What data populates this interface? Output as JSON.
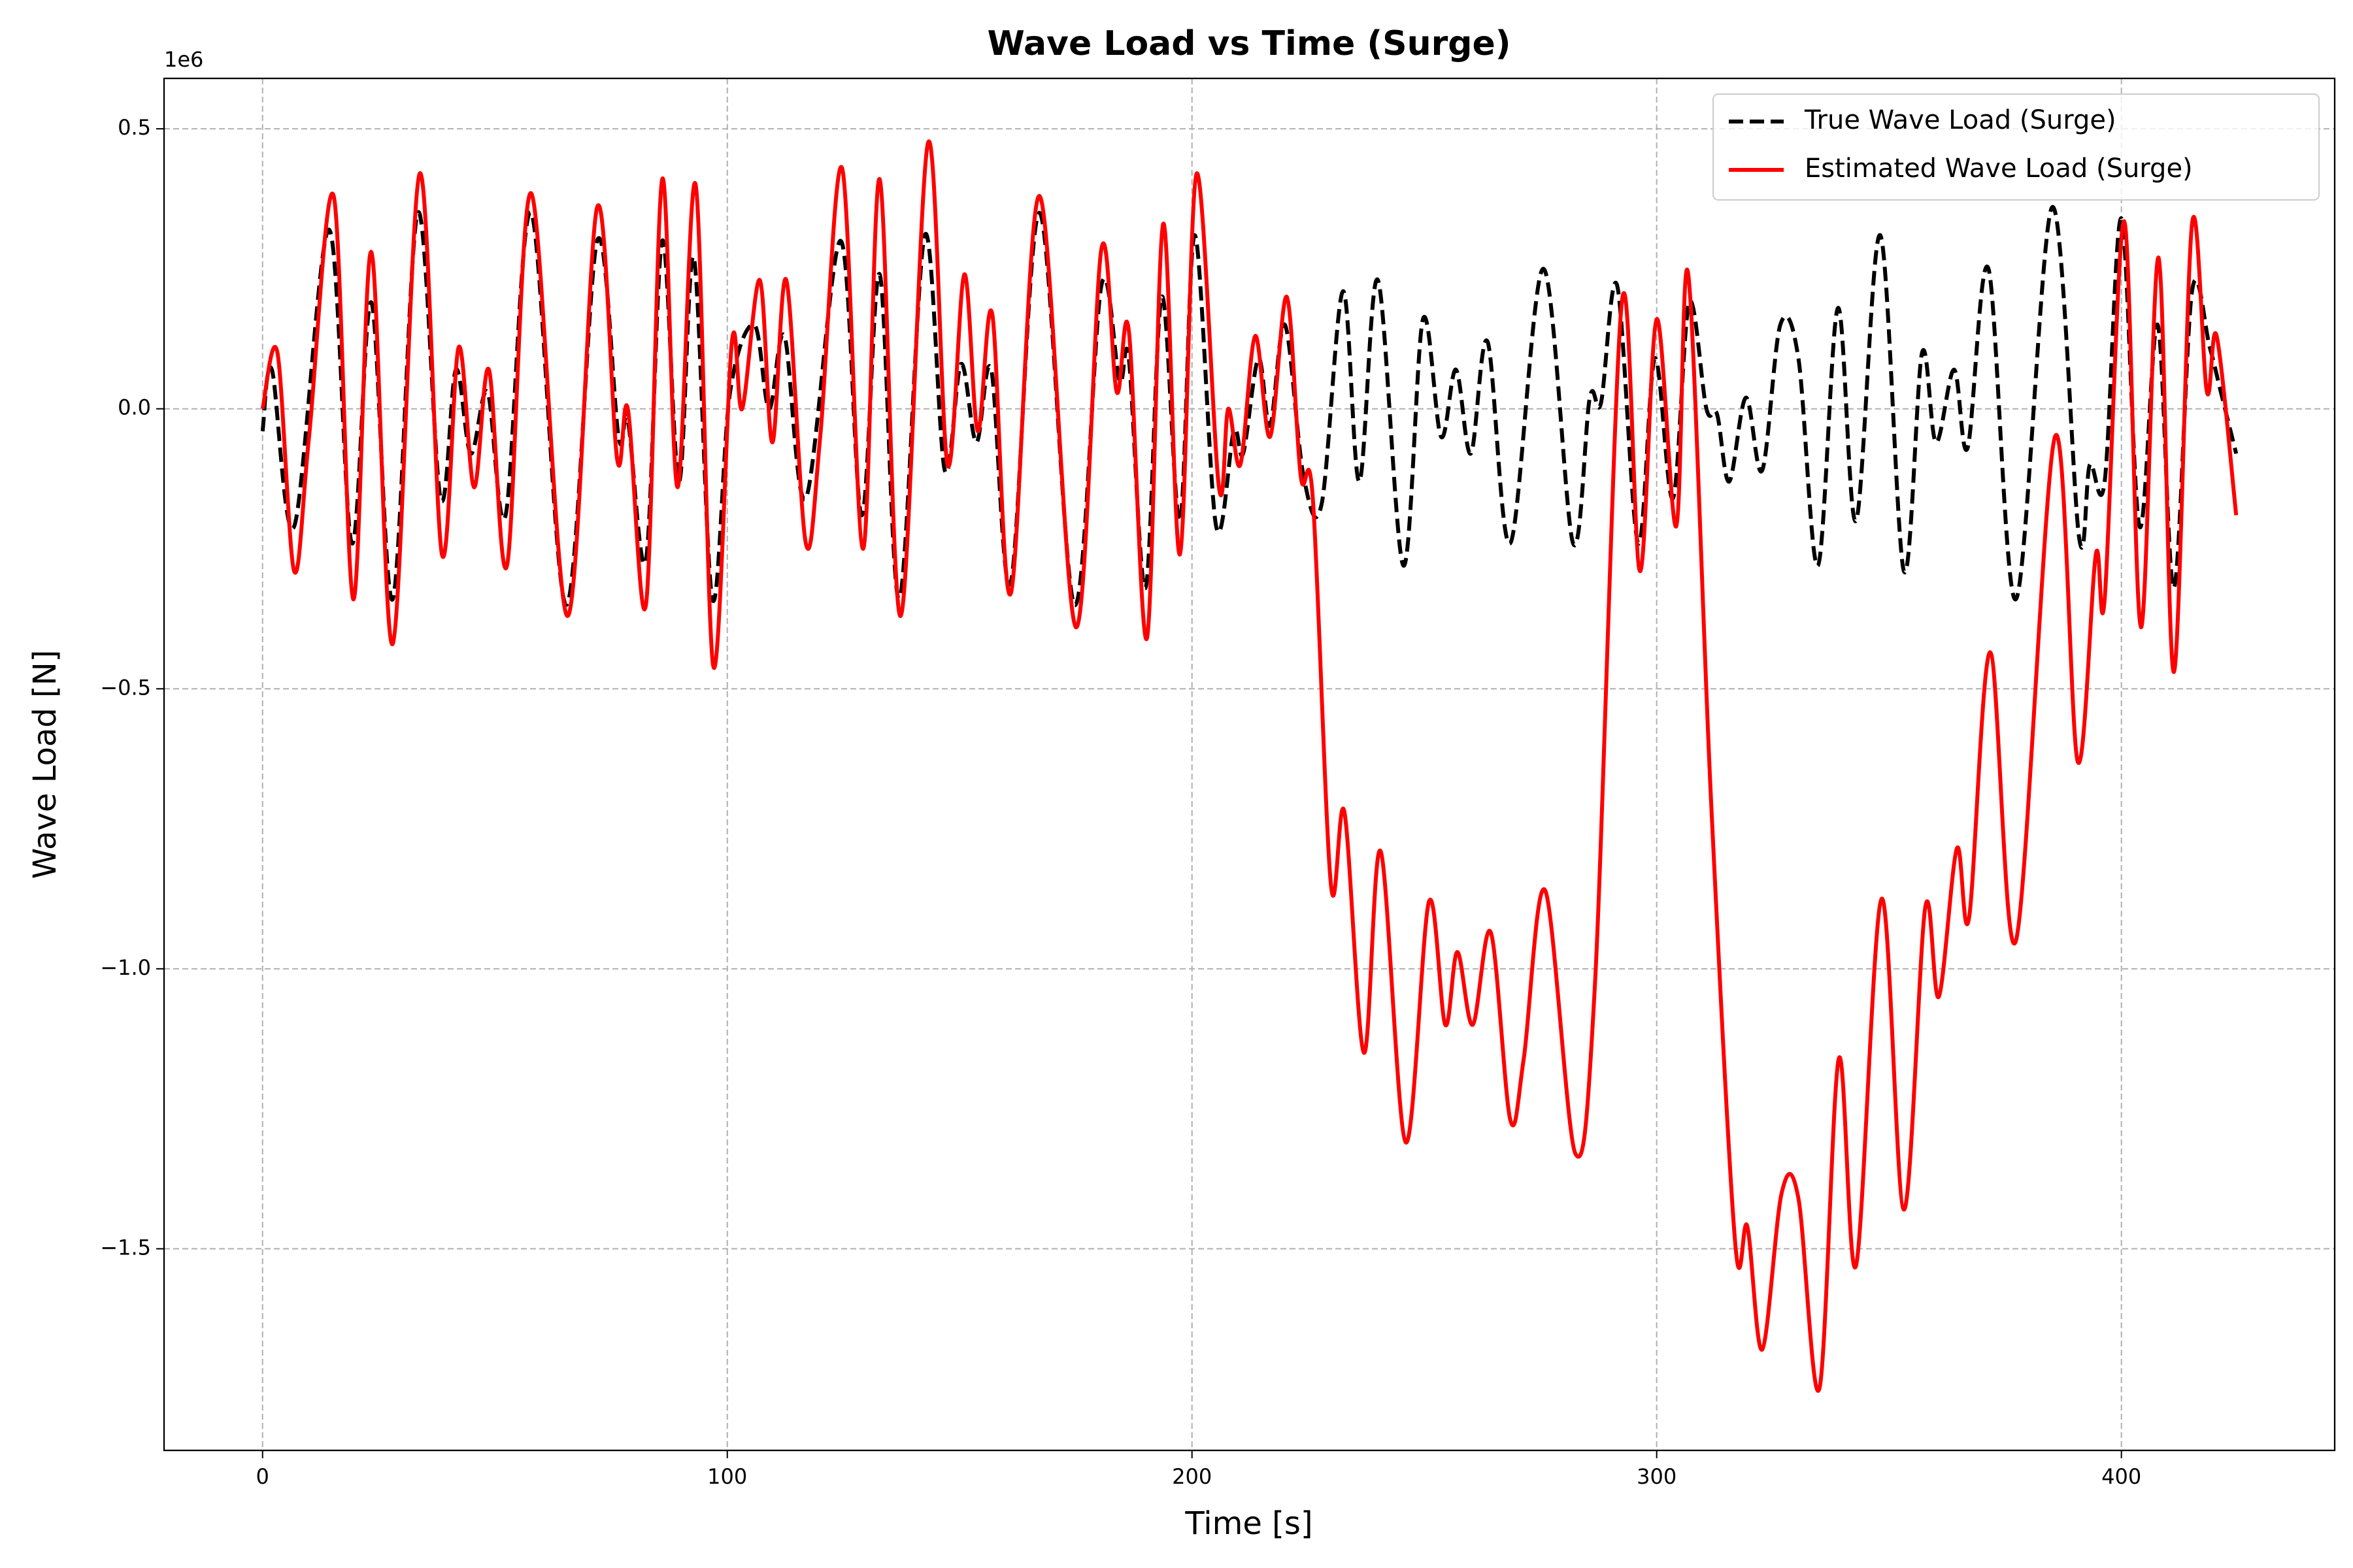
{
  "chart_data": {
    "type": "line",
    "title": "Wave Load vs Time (Surge)",
    "x_label": "Time [s]",
    "y_label": "Wave Load [N]",
    "y_offset_text": "1e6",
    "xlim": [
      -21.2,
      445.9
    ],
    "ylim": [
      -1.86,
      0.59
    ],
    "xticks": [
      0,
      100,
      200,
      300,
      400
    ],
    "yticks": [
      {
        "value": -1.5,
        "label": "−1.5"
      },
      {
        "value": -1.0,
        "label": "−1.0"
      },
      {
        "value": -0.5,
        "label": "−0.5"
      },
      {
        "value": 0,
        "label": "0.0"
      },
      0.5
    ],
    "grid": true,
    "legend_loc": "upper right",
    "series": [
      {
        "name": "True Wave Load (Surge)",
        "color": "#000000",
        "linestyle": "dashed",
        "x": [
          0,
          2,
          6.8,
          14.3,
          19.2,
          23.4,
          28,
          33.4,
          38.3,
          41.6,
          44.8,
          48.4,
          52.3,
          57.8,
          65.3,
          72,
          76.6,
          78.6,
          82.5,
          86,
          89.6,
          92.8,
          96.8,
          100.6,
          105.8,
          109,
          112.3,
          116.9,
          124.4,
          128.9,
          132.8,
          137,
          142.5,
          146.8,
          150.3,
          153.6,
          156.8,
          161,
          167.2,
          174.7,
          180.5,
          184.4,
          186.4,
          190,
          193.5,
          197.4,
          200.6,
          205.2,
          209,
          211,
          214.3,
          216.8,
          220,
          224,
          227.9,
          232.5,
          236,
          240,
          245.5,
          249.7,
          253.6,
          256.8,
          260,
          263.6,
          268.5,
          275.6,
          282,
          285.6,
          288,
          291.5,
          296,
          299.6,
          303.5,
          307,
          310.7,
          313,
          315.6,
          319.2,
          322.7,
          326.6,
          330.5,
          334.7,
          339,
          342.9,
          348.1,
          353.2,
          357.1,
          360.1,
          364,
          366.9,
          371.4,
          377.3,
          385.1,
          390.9,
          393.2,
          396.4,
          400,
          403.9,
          407.8,
          411.3,
          415.2,
          419,
          421.4,
          424.7
        ],
        "values": [
          -0.04,
          0.07,
          -0.21,
          0.32,
          -0.24,
          0.19,
          -0.34,
          0.35,
          -0.16,
          0.07,
          -0.08,
          0.03,
          -0.19,
          0.35,
          -0.35,
          0.3,
          -0.05,
          -0.02,
          -0.27,
          0.3,
          -0.13,
          0.27,
          -0.34,
          0.03,
          0.15,
          0,
          0.13,
          -0.16,
          0.3,
          -0.19,
          0.24,
          -0.34,
          0.31,
          -0.11,
          0.08,
          -0.06,
          0.07,
          -0.31,
          0.35,
          -0.35,
          0.22,
          0.05,
          0.09,
          -0.32,
          0.2,
          -0.2,
          0.31,
          -0.21,
          -0.04,
          -0.08,
          0.09,
          -0.03,
          0.15,
          -0.12,
          -0.17,
          0.21,
          -0.13,
          0.23,
          -0.28,
          0.16,
          -0.05,
          0.07,
          -0.08,
          0.12,
          -0.24,
          0.25,
          -0.24,
          0.02,
          0.01,
          0.22,
          -0.24,
          0.09,
          -0.16,
          0.19,
          0,
          -0.01,
          -0.13,
          0.02,
          -0.11,
          0.15,
          0.09,
          -0.28,
          0.18,
          -0.2,
          0.31,
          -0.29,
          0.1,
          -0.06,
          0.07,
          -0.07,
          0.25,
          -0.34,
          0.36,
          -0.23,
          -0.1,
          -0.13,
          0.34,
          -0.21,
          0.15,
          -0.32,
          0.21,
          0.11,
          0.03,
          -0.08
        ]
      },
      {
        "name": "Estimated Wave Load (Surge)",
        "color": "#ff0000",
        "linestyle": "solid",
        "x": [
          0,
          3.2,
          6.8,
          10,
          15.3,
          19.5,
          23.4,
          28,
          33.8,
          38.6,
          42.2,
          45.5,
          48.7,
          52.6,
          57.8,
          65.6,
          72,
          76.3,
          78.6,
          82.5,
          86,
          89.3,
          93.2,
          97,
          101,
          103.2,
          107,
          109.7,
          112.7,
          116.9,
          120,
          124.7,
          129.2,
          132.8,
          137.3,
          143.2,
          147.4,
          151,
          153.9,
          157,
          161,
          167.2,
          175,
          180.5,
          183.8,
          186.4,
          190.3,
          193.8,
          197.4,
          201,
          205.8,
          207.8,
          210.4,
          213.6,
          216.8,
          220.4,
          223.4,
          226,
          229.9,
          232.8,
          237,
          240.6,
          246,
          251,
          254.5,
          257.1,
          260.4,
          264.3,
          268.5,
          271.4,
          276,
          282.5,
          286.7,
          292.5,
          296.4,
          300,
          304.2,
          306.8,
          311.7,
          316.9,
          319.5,
          322.7,
          326.9,
          330.5,
          335,
          339.2,
          342.9,
          348.4,
          353.2,
          357.8,
          360.7,
          364.6,
          367.2,
          371.8,
          377.3,
          385.7,
          390.6,
          394.5,
          396.4,
          400.6,
          404.2,
          408,
          411.3,
          415.2,
          418.4,
          420.5,
          424.7
        ],
        "values": [
          0,
          0.1,
          -0.29,
          -0.05,
          0.38,
          -0.34,
          0.28,
          -0.42,
          0.42,
          -0.26,
          0.11,
          -0.14,
          0.07,
          -0.28,
          0.385,
          -0.37,
          0.36,
          -0.09,
          0,
          -0.35,
          0.41,
          -0.14,
          0.4,
          -0.46,
          0.12,
          0,
          0.23,
          -0.06,
          0.23,
          -0.24,
          -0.05,
          0.43,
          -0.25,
          0.41,
          -0.37,
          0.475,
          -0.1,
          0.24,
          -0.04,
          0.17,
          -0.33,
          0.38,
          -0.39,
          0.285,
          0.03,
          0.14,
          -0.41,
          0.33,
          -0.26,
          0.42,
          -0.14,
          0,
          -0.1,
          0.13,
          -0.05,
          0.2,
          -0.12,
          -0.16,
          -0.85,
          -0.72,
          -1.15,
          -0.79,
          -1.31,
          -0.88,
          -1.1,
          -0.97,
          -1.1,
          -0.935,
          -1.27,
          -1.16,
          -0.86,
          -1.33,
          -1.03,
          0.19,
          -0.29,
          0.16,
          -0.21,
          0.24,
          -0.7,
          -1.49,
          -1.46,
          -1.68,
          -1.4,
          -1.41,
          -1.75,
          -1.16,
          -1.53,
          -0.875,
          -1.43,
          -0.89,
          -1.05,
          -0.785,
          -0.91,
          -0.435,
          -0.95,
          -0.05,
          -0.63,
          -0.26,
          -0.34,
          0.335,
          -0.39,
          0.27,
          -0.47,
          0.33,
          0.03,
          0.13,
          -0.19
        ]
      }
    ]
  }
}
